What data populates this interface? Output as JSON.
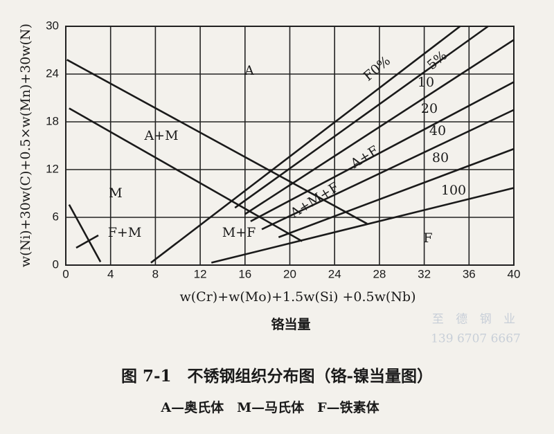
{
  "chart_data": {
    "type": "line",
    "title": "图 7-1　不锈钢组织分布图（铬-镍当量图）",
    "subtitle": "A—奥氏体　M—马氏体　F—铁素体",
    "x_label": "w(Cr)+w(Mo)+1.5w(Si) +0.5w(Nb)",
    "x_label_cn": "铬当量",
    "y_label": "w(Ni)+30w(C)+0.5×w(Mn)+30w(N)",
    "watermark": [
      "至 德 钢 业",
      "139 6707 6667"
    ],
    "xlim": [
      0,
      40
    ],
    "xticks": [
      0,
      4,
      8,
      12,
      16,
      20,
      24,
      28,
      32,
      36,
      40
    ],
    "ylim": [
      0,
      30
    ],
    "yticks": [
      0,
      6,
      12,
      18,
      24,
      30
    ],
    "grid": true,
    "annotations": [
      "A",
      "A+M",
      "M",
      "F+M",
      "M+F",
      "A+M+F",
      "A+F",
      "F"
    ],
    "series": [
      {
        "color": "#1a1a1a",
        "x": [
          0.1,
          26.9
        ],
        "values": [
          25.8,
          5.2
        ]
      },
      {
        "color": "#1a1a1a",
        "x": [
          0.3,
          21.1
        ],
        "values": [
          19.7,
          3.0
        ]
      },
      {
        "color": "#1a1a1a",
        "x": [
          0.3,
          3.1
        ],
        "values": [
          7.6,
          0.4
        ]
      },
      {
        "name": "F0%",
        "color": "#1a1a1a",
        "x": [
          7.6,
          35.2
        ],
        "values": [
          0.3,
          30
        ]
      },
      {
        "name": "5%",
        "color": "#1a1a1a",
        "x": [
          15.1,
          37.7
        ],
        "values": [
          7.2,
          30
        ]
      },
      {
        "name": "10",
        "color": "#1a1a1a",
        "x": [
          16,
          40
        ],
        "values": [
          6.4,
          28.3
        ]
      },
      {
        "name": "20",
        "color": "#1a1a1a",
        "x": [
          16.5,
          40
        ],
        "values": [
          5.5,
          23
        ]
      },
      {
        "name": "40",
        "color": "#1a1a1a",
        "x": [
          17.5,
          40
        ],
        "values": [
          4.5,
          19.5
        ]
      },
      {
        "name": "80",
        "color": "#1a1a1a",
        "x": [
          19,
          40
        ],
        "values": [
          3.5,
          14.6
        ]
      },
      {
        "name": "100",
        "color": "#1a1a1a",
        "x": [
          13,
          40
        ],
        "values": [
          0.3,
          9.7
        ]
      }
    ]
  }
}
